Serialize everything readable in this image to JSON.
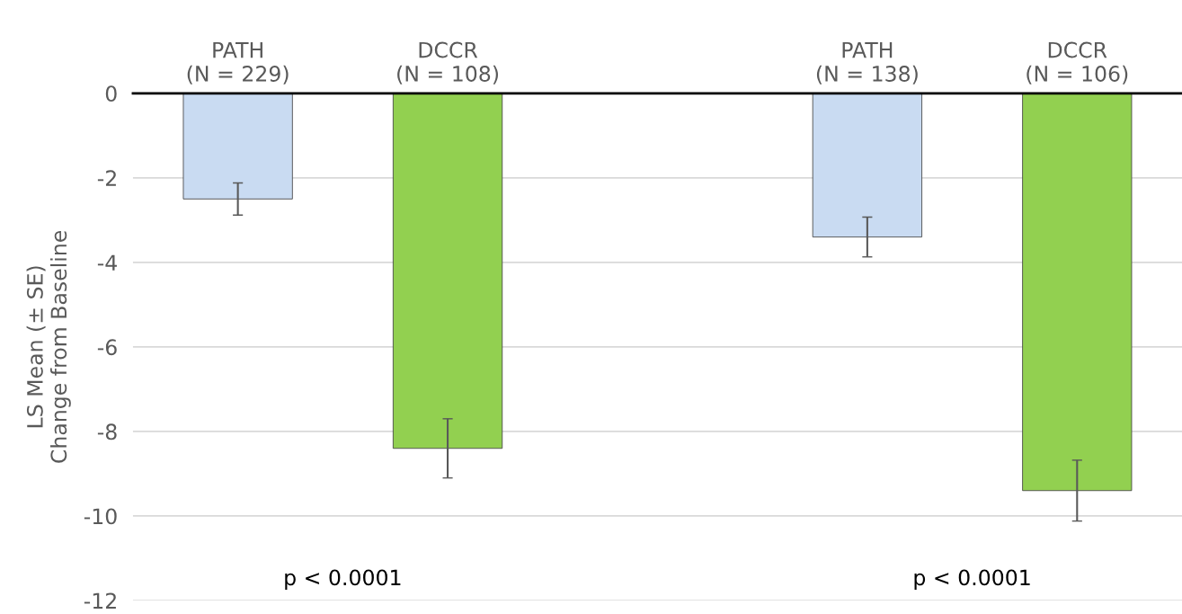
{
  "chart_data": {
    "type": "bar",
    "ylabel": "LS Mean (± SE)\nChange from Baseline",
    "categories": [
      "PATH\n(N = 229)",
      "DCCR\n(N = 108)",
      null,
      "PATH\n(N = 138)",
      "DCCR\n(N = 106)"
    ],
    "values": [
      -2.5,
      -8.4,
      null,
      -3.4,
      -9.4
    ],
    "errors": [
      0.38,
      0.7,
      null,
      0.47,
      0.72
    ],
    "colors": [
      "#c9dbf2",
      "#92d050",
      "#ffffff",
      "#c9dbf2",
      "#92d050"
    ],
    "ylim": [
      -12,
      0
    ],
    "yticks": [
      -12,
      -10,
      -8,
      -6,
      -4,
      -2,
      0
    ],
    "grid": "y",
    "annotations": [
      "p < 0.0001",
      "p < 0.0001"
    ]
  }
}
